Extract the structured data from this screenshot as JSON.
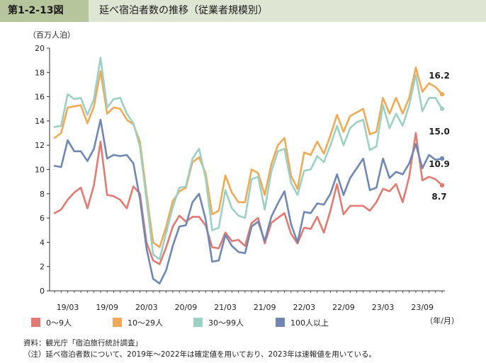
{
  "header": {
    "figure_no": "第1-2-13図",
    "title": "延べ宿泊者数の推移（従業者規模別）"
  },
  "footer": {
    "source": "資料：観光庁「宿泊旅行統計調査」",
    "note": "（注）延べ宿泊者数について、2019年～2022年は確定値を用いており、2023年は速報値を用いている。"
  },
  "chart_data": {
    "type": "line",
    "ylabel": "（百万人泊）",
    "xlabel": "（年/月）",
    "ylim": [
      0,
      20
    ],
    "yticks": [
      0,
      2,
      4,
      6,
      8,
      10,
      12,
      14,
      16,
      18,
      20
    ],
    "xtick_labels": [
      "19/03",
      "19/09",
      "20/03",
      "20/09",
      "21/03",
      "21/09",
      "22/03",
      "22/09",
      "23/03",
      "23/09"
    ],
    "xtick_indices": [
      2,
      8,
      14,
      20,
      26,
      32,
      38,
      44,
      50,
      56
    ],
    "legend_position": "bottom",
    "end_labels": [
      "16.2",
      "15.0",
      "10.9",
      "8.7"
    ],
    "series": [
      {
        "name": "0～9人",
        "color": "#e07a72",
        "values": [
          6.4,
          6.7,
          7.5,
          8.1,
          8.5,
          6.8,
          8.7,
          12.3,
          7.9,
          7.8,
          7.5,
          6.8,
          8.6,
          8.0,
          4.0,
          2.5,
          2.2,
          3.6,
          5.3,
          6.2,
          5.7,
          6.1,
          6.1,
          5.4,
          3.6,
          3.5,
          4.8,
          4.1,
          4.2,
          3.7,
          5.6,
          6.0,
          3.9,
          5.6,
          6.0,
          6.4,
          4.7,
          3.9,
          5.2,
          5.1,
          6.1,
          4.8,
          6.6,
          8.8,
          6.3,
          7.0,
          7.0,
          7.0,
          6.6,
          7.3,
          8.4,
          8.2,
          8.8,
          7.3,
          9.4,
          13.0,
          9.1,
          9.4,
          9.2,
          8.7
        ]
      },
      {
        "name": "10～29人",
        "color": "#eeaa56",
        "values": [
          12.6,
          13.0,
          15.1,
          15.2,
          15.3,
          13.8,
          15.2,
          18.1,
          14.6,
          15.1,
          15.0,
          14.1,
          13.7,
          12.3,
          8.0,
          4.0,
          3.6,
          5.3,
          7.4,
          8.2,
          8.5,
          10.6,
          11.0,
          9.7,
          6.3,
          6.6,
          9.5,
          8.1,
          7.3,
          7.3,
          10.0,
          9.7,
          7.9,
          10.4,
          12.0,
          12.6,
          9.5,
          8.4,
          11.4,
          11.2,
          12.3,
          11.3,
          12.8,
          14.5,
          13.1,
          14.4,
          14.7,
          15.0,
          12.9,
          13.1,
          15.9,
          14.6,
          15.9,
          14.6,
          15.9,
          18.4,
          16.4,
          17.1,
          16.8,
          16.2
        ]
      },
      {
        "name": "30～99人",
        "color": "#9ecfc3",
        "values": [
          13.5,
          13.6,
          16.2,
          15.8,
          15.9,
          14.5,
          15.8,
          19.2,
          15.1,
          15.8,
          15.9,
          14.6,
          13.8,
          11.9,
          7.5,
          3.0,
          2.6,
          4.8,
          6.9,
          8.5,
          8.6,
          10.9,
          11.7,
          9.3,
          5.0,
          5.2,
          8.3,
          6.8,
          6.2,
          6.0,
          9.2,
          9.4,
          6.7,
          9.8,
          11.5,
          11.7,
          8.9,
          7.9,
          9.9,
          10.0,
          11.1,
          10.6,
          12.0,
          13.6,
          12.0,
          13.4,
          13.9,
          14.1,
          11.6,
          11.9,
          15.3,
          13.4,
          14.6,
          13.6,
          15.3,
          17.8,
          14.8,
          15.9,
          15.9,
          15.0
        ]
      },
      {
        "name": "100人以上",
        "color": "#7087b3",
        "values": [
          10.3,
          10.2,
          12.4,
          11.5,
          11.5,
          10.7,
          11.7,
          14.1,
          10.9,
          11.2,
          11.1,
          11.2,
          10.5,
          7.6,
          3.5,
          1.0,
          0.6,
          1.7,
          3.7,
          5.3,
          5.4,
          7.3,
          8.0,
          5.9,
          2.4,
          2.5,
          4.6,
          3.7,
          3.2,
          3.1,
          5.3,
          5.7,
          4.1,
          6.1,
          7.2,
          8.2,
          5.5,
          4.0,
          6.5,
          6.4,
          7.2,
          7.1,
          8.0,
          9.6,
          7.9,
          9.3,
          10.1,
          10.9,
          8.3,
          8.5,
          10.9,
          9.3,
          9.8,
          9.6,
          10.5,
          12.1,
          10.1,
          11.2,
          10.8,
          10.9
        ]
      }
    ]
  }
}
